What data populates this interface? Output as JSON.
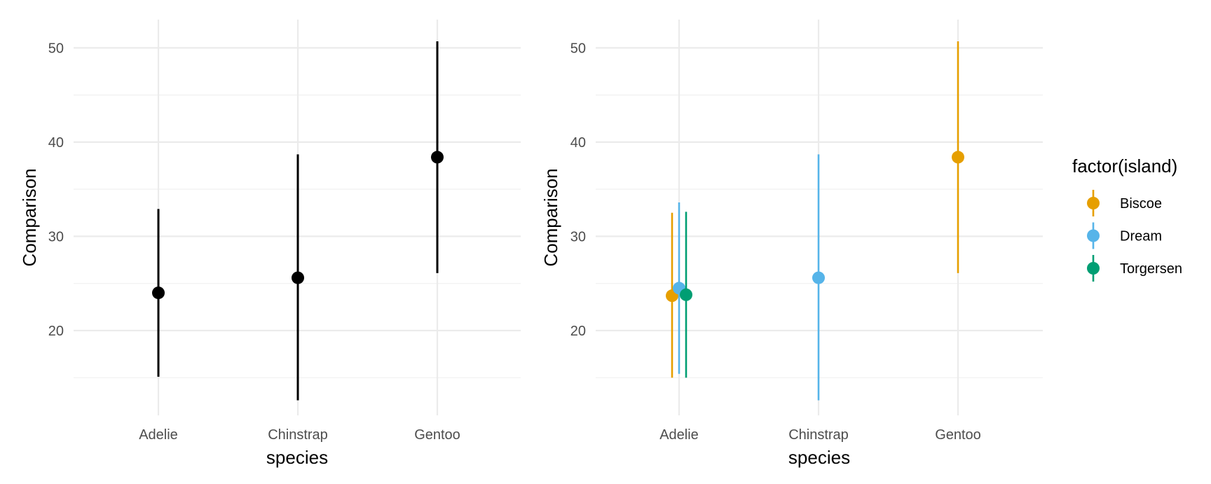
{
  "chart_data": [
    {
      "type": "pointrange",
      "xlabel": "species",
      "ylabel": "Comparison",
      "categories": [
        "Adelie",
        "Chinstrap",
        "Gentoo"
      ],
      "yticks": [
        20,
        30,
        40,
        50
      ],
      "ylim": [
        11,
        53
      ],
      "grid": true,
      "series": [
        {
          "color": "#000000",
          "points": [
            {
              "x": "Adelie",
              "y": 24.0,
              "low": 15.1,
              "high": 32.9
            },
            {
              "x": "Chinstrap",
              "y": 25.6,
              "low": 12.6,
              "high": 38.7
            },
            {
              "x": "Gentoo",
              "y": 38.4,
              "low": 26.1,
              "high": 50.7
            }
          ]
        }
      ]
    },
    {
      "type": "pointrange",
      "xlabel": "species",
      "ylabel": "Comparison",
      "categories": [
        "Adelie",
        "Chinstrap",
        "Gentoo"
      ],
      "yticks": [
        20,
        30,
        40,
        50
      ],
      "ylim": [
        11,
        53
      ],
      "grid": true,
      "legend": {
        "title": "factor(island)",
        "position": "right"
      },
      "series": [
        {
          "name": "Biscoe",
          "color": "#E69F00",
          "points": [
            {
              "x": "Adelie",
              "y": 23.7,
              "low": 15.0,
              "high": 32.5
            },
            {
              "x": "Gentoo",
              "y": 38.4,
              "low": 26.1,
              "high": 50.7
            }
          ]
        },
        {
          "name": "Dream",
          "color": "#56B4E9",
          "points": [
            {
              "x": "Adelie",
              "y": 24.5,
              "low": 15.4,
              "high": 33.6
            },
            {
              "x": "Chinstrap",
              "y": 25.6,
              "low": 12.6,
              "high": 38.7
            }
          ]
        },
        {
          "name": "Torgersen",
          "color": "#009E73",
          "points": [
            {
              "x": "Adelie",
              "y": 23.8,
              "low": 15.0,
              "high": 32.6
            }
          ]
        }
      ]
    }
  ]
}
